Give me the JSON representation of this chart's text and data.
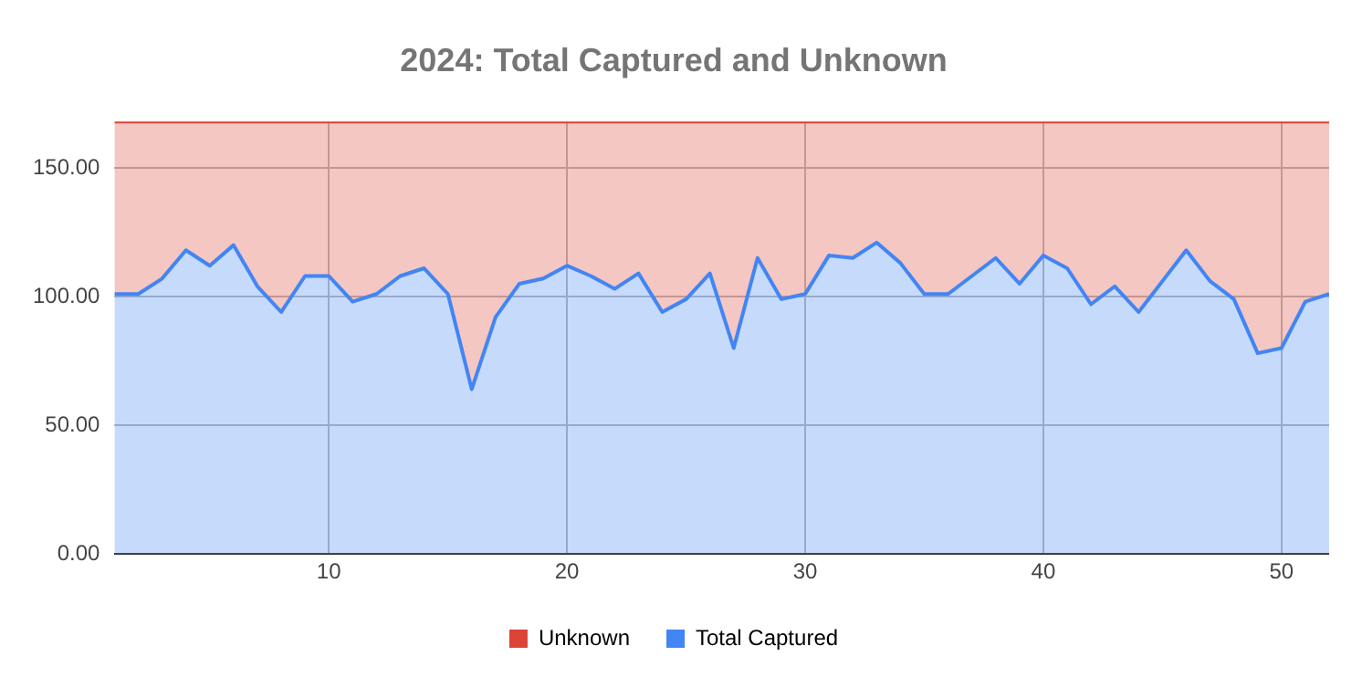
{
  "chart_data": {
    "type": "area",
    "title": "2024: Total Captured and Unknown",
    "stacked": true,
    "x": [
      1,
      2,
      3,
      4,
      5,
      6,
      7,
      8,
      9,
      10,
      11,
      12,
      13,
      14,
      15,
      16,
      17,
      18,
      19,
      20,
      21,
      22,
      23,
      24,
      25,
      26,
      27,
      28,
      29,
      30,
      31,
      32,
      33,
      34,
      35,
      36,
      37,
      38,
      39,
      40,
      41,
      42,
      43,
      44,
      45,
      46,
      47,
      48,
      49,
      50,
      51,
      52
    ],
    "series": [
      {
        "name": "Total Captured",
        "color": "#4285f4",
        "values": [
          101,
          101,
          107,
          118,
          112,
          120,
          104,
          94,
          108,
          108,
          98,
          101,
          108,
          111,
          101,
          64,
          92,
          105,
          107,
          112,
          108,
          103,
          109,
          94,
          99,
          109,
          80,
          115,
          99,
          101,
          116,
          115,
          121,
          113,
          101,
          101,
          108,
          115,
          105,
          116,
          111,
          97,
          104,
          94,
          106,
          118,
          106,
          99,
          78,
          80,
          98,
          101
        ]
      },
      {
        "name": "Unknown",
        "color": "#db4437",
        "values": [
          67,
          67,
          61,
          50,
          56,
          48,
          64,
          74,
          60,
          60,
          70,
          67,
          60,
          57,
          67,
          104,
          76,
          63,
          61,
          56,
          60,
          65,
          59,
          74,
          69,
          59,
          88,
          53,
          69,
          67,
          52,
          53,
          47,
          55,
          67,
          67,
          60,
          53,
          63,
          52,
          57,
          71,
          64,
          74,
          62,
          50,
          62,
          69,
          90,
          88,
          70,
          67
        ]
      }
    ],
    "xlim": [
      1,
      52
    ],
    "xticks": [
      10,
      20,
      30,
      40,
      50
    ],
    "ylim": [
      0,
      168
    ],
    "yticks": [
      {
        "value": 0,
        "label": "0.00"
      },
      {
        "value": 50,
        "label": "50.00"
      },
      {
        "value": 100,
        "label": "100.00"
      },
      {
        "value": 150,
        "label": "150.00"
      }
    ],
    "grid": true,
    "legend": "bottom",
    "marker": "none"
  }
}
